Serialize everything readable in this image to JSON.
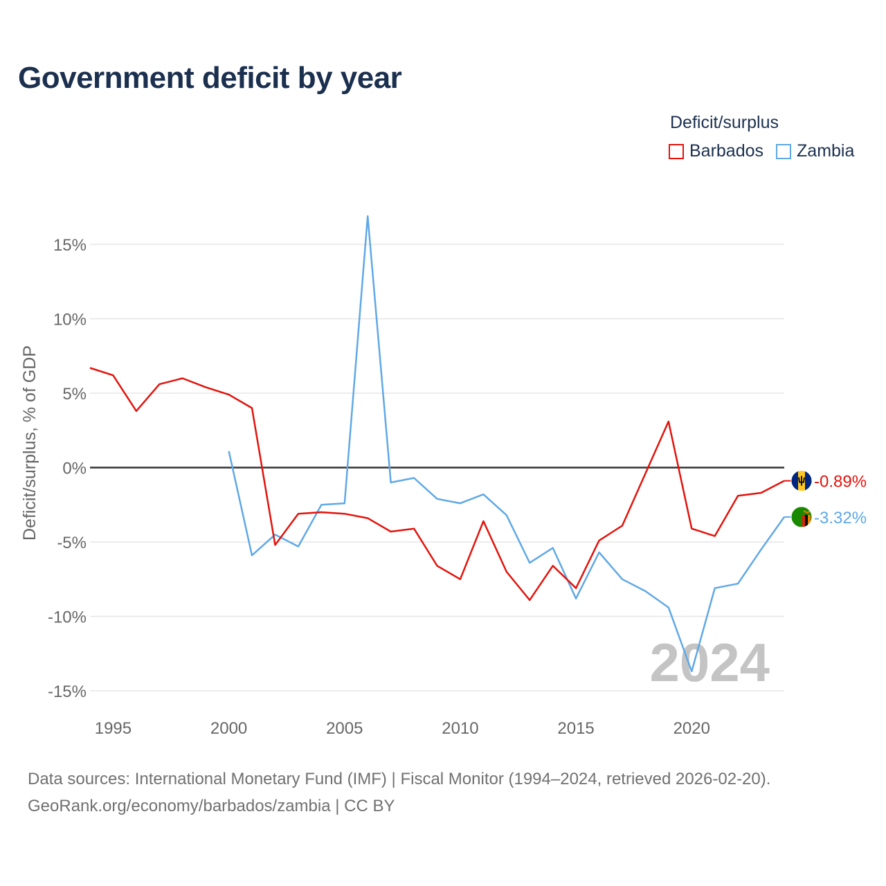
{
  "title": "Government deficit by year",
  "legend": {
    "title": "Deficit/surplus",
    "items": [
      {
        "label": "Barbados",
        "color": "#e3120b"
      },
      {
        "label": "Zambia",
        "color": "#5fa8e6"
      }
    ]
  },
  "chart_data": {
    "type": "line",
    "title": "Government deficit by year",
    "xlabel": "",
    "ylabel": "Deficit/surplus, % of GDP",
    "xlim": [
      1994,
      2024
    ],
    "ylim": [
      -15,
      17
    ],
    "yticks": [
      15,
      10,
      5,
      0,
      -5,
      -10,
      -15
    ],
    "ytick_labels": [
      "15%",
      "10%",
      "5%",
      "0%",
      "-5%",
      "-10%",
      "-15%"
    ],
    "xticks": [
      1995,
      2000,
      2005,
      2010,
      2015,
      2020
    ],
    "xtick_labels": [
      "1995",
      "2000",
      "2005",
      "2010",
      "2015",
      "2020"
    ],
    "grid": true,
    "year_watermark": "2024",
    "series": [
      {
        "name": "Barbados",
        "color": "#e3120b",
        "end_label": "-0.89%",
        "flag": "barbados-flag",
        "x": [
          1994,
          1995,
          1996,
          1997,
          1998,
          1999,
          2000,
          2001,
          2002,
          2003,
          2004,
          2005,
          2006,
          2007,
          2008,
          2009,
          2010,
          2011,
          2012,
          2013,
          2014,
          2015,
          2016,
          2017,
          2018,
          2019,
          2020,
          2021,
          2022,
          2023,
          2024
        ],
        "values": [
          6.7,
          6.2,
          3.8,
          5.6,
          6.0,
          5.4,
          4.9,
          4.0,
          -5.2,
          -3.1,
          -3.0,
          -3.1,
          -3.4,
          -4.3,
          -4.1,
          -6.6,
          -7.5,
          -3.6,
          -7.0,
          -8.9,
          -6.6,
          -8.1,
          -4.9,
          -3.9,
          -0.4,
          3.1,
          -4.1,
          -4.6,
          -1.9,
          -1.7,
          -0.89
        ]
      },
      {
        "name": "Zambia",
        "color": "#5fa8e6",
        "end_label": "-3.32%",
        "flag": "zambia-flag",
        "x": [
          2000,
          2001,
          2002,
          2003,
          2004,
          2005,
          2006,
          2007,
          2008,
          2009,
          2010,
          2011,
          2012,
          2013,
          2014,
          2015,
          2016,
          2017,
          2018,
          2019,
          2020,
          2021,
          2022,
          2023,
          2024
        ],
        "values": [
          1.1,
          -5.9,
          -4.5,
          -5.3,
          -2.5,
          -2.4,
          16.9,
          -1.0,
          -0.7,
          -2.1,
          -2.4,
          -1.8,
          -3.2,
          -6.4,
          -5.4,
          -8.8,
          -5.7,
          -7.5,
          -8.3,
          -9.4,
          -13.7,
          -8.1,
          -7.8,
          -5.5,
          -3.32
        ]
      }
    ]
  },
  "source": {
    "line1": "Data sources: International Monetary Fund (IMF) | Fiscal Monitor (1994–2024, retrieved 2026-02-20).",
    "line2": "GeoRank.org/economy/barbados/zambia | CC BY"
  }
}
